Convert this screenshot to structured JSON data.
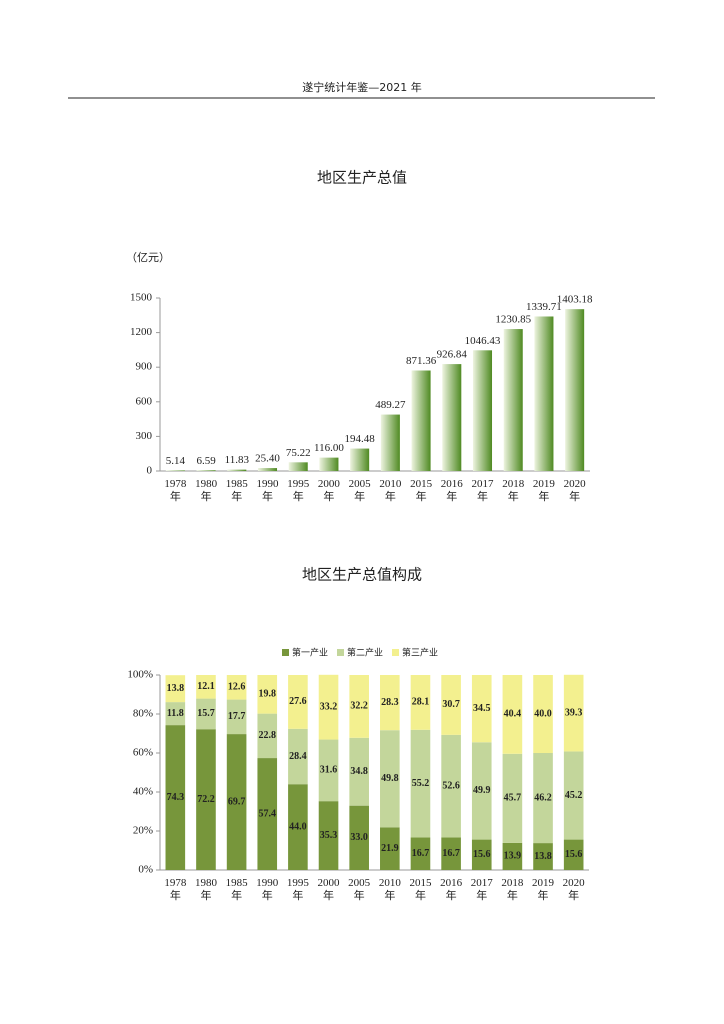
{
  "header": {
    "title": "遂宁统计年鉴—2021 年"
  },
  "chart_data": [
    {
      "type": "bar",
      "title": "地区生产总值",
      "y_label": "（亿元）",
      "categories": [
        "1978年",
        "1980年",
        "1985年",
        "1990年",
        "1995年",
        "2000年",
        "2005年",
        "2010年",
        "2015年",
        "2016年",
        "2017年",
        "2018年",
        "2019年",
        "2020年"
      ],
      "values": [
        5.14,
        6.59,
        11.83,
        25.4,
        75.22,
        116.0,
        194.48,
        489.27,
        871.36,
        926.84,
        1046.43,
        1230.85,
        1339.71,
        1403.18
      ],
      "value_labels": [
        "5.14",
        "6.59",
        "11.83",
        "25.40",
        "75.22",
        "116.00",
        "194.48",
        "489.27",
        "871.36",
        "926.84",
        "1046.43",
        "1230.85",
        "1339.71",
        "1403.18"
      ],
      "color": "#4f8a22",
      "ylim": [
        0,
        1500
      ],
      "yticks": [
        0,
        300,
        600,
        900,
        1200,
        1500
      ]
    },
    {
      "type": "stacked_bar",
      "title": "地区生产总值构成",
      "categories": [
        "1978年",
        "1980年",
        "1985年",
        "1990年",
        "1995年",
        "2000年",
        "2005年",
        "2010年",
        "2015年",
        "2016年",
        "2017年",
        "2018年",
        "2019年",
        "2020年"
      ],
      "series": [
        {
          "name": "第一产业",
          "color": "#77963b",
          "values": [
            74.3,
            72.2,
            69.7,
            57.4,
            44.0,
            35.3,
            33.0,
            21.9,
            16.7,
            16.7,
            15.6,
            13.9,
            13.8,
            15.6
          ],
          "value_labels": [
            "74.3",
            "72.2",
            "69.7",
            "57.4",
            "44.0",
            "35.3",
            "33.0",
            "21.9",
            "16.7",
            "16.7",
            "15.6",
            "13.9",
            "13.8",
            "15.6"
          ]
        },
        {
          "name": "第二产业",
          "color": "#c3d69b",
          "values": [
            11.8,
            15.7,
            17.7,
            22.8,
            28.4,
            31.6,
            34.8,
            49.8,
            55.2,
            52.6,
            49.9,
            45.7,
            46.2,
            45.2
          ],
          "value_labels": [
            "11.8",
            "15.7",
            "17.7",
            "22.8",
            "28.4",
            "31.6",
            "34.8",
            "49.8",
            "55.2",
            "52.6",
            "49.9",
            "45.7",
            "46.2",
            "45.2"
          ]
        },
        {
          "name": "第三产业",
          "color": "#f3f08f",
          "values": [
            13.8,
            12.1,
            12.6,
            19.8,
            27.6,
            33.2,
            32.2,
            28.3,
            28.1,
            30.7,
            34.5,
            40.4,
            40.0,
            39.3
          ],
          "value_labels": [
            "13.8",
            "12.1",
            "12.6",
            "19.8",
            "27.6",
            "33.2",
            "32.2",
            "28.3",
            "28.1",
            "30.7",
            "34.5",
            "40.4",
            "40.0",
            "39.3"
          ]
        }
      ],
      "ylim": [
        0,
        100
      ],
      "yticks": [
        {
          "value": 0,
          "label": "0%"
        },
        {
          "value": 20,
          "label": "20%"
        },
        {
          "value": 40,
          "label": "40%"
        },
        {
          "value": 60,
          "label": "60%"
        },
        {
          "value": 80,
          "label": "80%"
        },
        {
          "value": 100,
          "label": "100%"
        }
      ],
      "legend": "top"
    }
  ]
}
